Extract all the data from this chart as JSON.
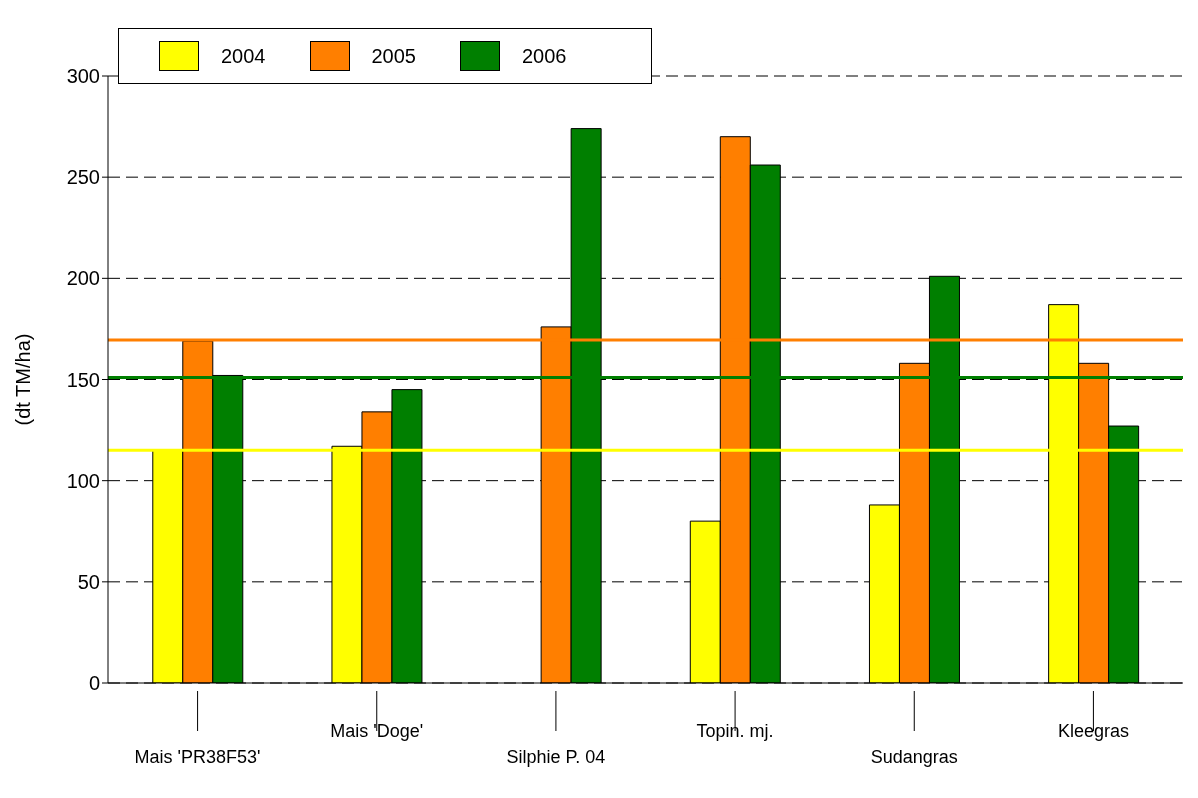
{
  "chart_data": {
    "type": "bar",
    "ylabel": "(dt TM/ha)",
    "categories": [
      "Mais 'PR38F53'",
      "Mais 'Doge'",
      "Silphie P. 04",
      "Topin. mj.",
      "Sudangras",
      "Kleegras"
    ],
    "series": [
      {
        "name": "2004",
        "color": "#ffff00",
        "values": [
          115,
          117,
          null,
          80,
          88,
          187
        ]
      },
      {
        "name": "2005",
        "color": "#ff7f00",
        "values": [
          169,
          134,
          176,
          270,
          158,
          158
        ]
      },
      {
        "name": "2006",
        "color": "#007f00",
        "values": [
          152,
          145,
          274,
          256,
          201,
          127
        ]
      }
    ],
    "ylim": [
      0,
      300
    ],
    "yticks": [
      0,
      50,
      100,
      150,
      200,
      250,
      300
    ],
    "grid": "y",
    "legend": "top left",
    "ref_lines": [
      {
        "axis": "y",
        "value": 115,
        "color": "#ffff00"
      },
      {
        "axis": "y",
        "value": 169.5,
        "color": "#ff7f00"
      },
      {
        "axis": "y",
        "value": 151,
        "color": "#007f00"
      }
    ]
  }
}
